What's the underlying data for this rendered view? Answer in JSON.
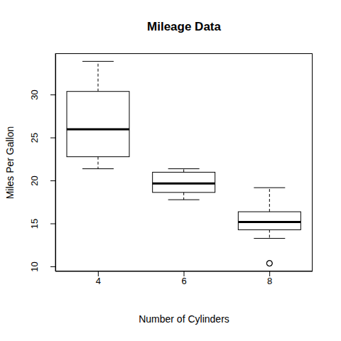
{
  "chart_data": {
    "type": "box",
    "title": "Mileage Data",
    "x_label": "Number of Cylinders",
    "y_label": "Miles Per Gallon",
    "categories": [
      "4",
      "6",
      "8"
    ],
    "boxes": [
      {
        "min": 21.4,
        "q1": 22.8,
        "median": 26.0,
        "q3": 30.4,
        "max": 33.9,
        "outliers": []
      },
      {
        "min": 17.8,
        "q1": 18.65,
        "median": 19.7,
        "q3": 21.0,
        "max": 21.4,
        "outliers": []
      },
      {
        "min": 13.3,
        "q1": 14.3,
        "median": 15.2,
        "q3": 16.4,
        "max": 19.2,
        "outliers": [
          10.4,
          10.4
        ]
      }
    ],
    "color": "#000000",
    "ylim": [
      9.46,
      34.84
    ],
    "yticks": [
      10,
      15,
      20,
      25,
      30
    ]
  }
}
